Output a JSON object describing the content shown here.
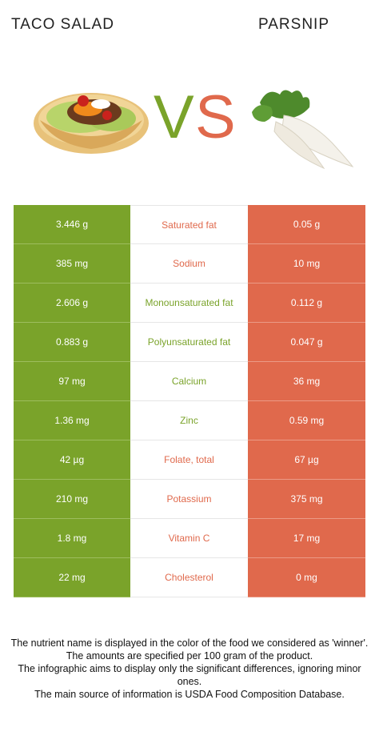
{
  "header": {
    "left": "TACO SALAD",
    "right": "PARSNIP"
  },
  "vs": {
    "v": "V",
    "s": "S"
  },
  "colors": {
    "green": "#7aa32a",
    "orange": "#e0694c"
  },
  "rows": [
    {
      "left": "3.446 g",
      "nutrient": "Saturated fat",
      "right": "0.05 g",
      "winner": "right"
    },
    {
      "left": "385 mg",
      "nutrient": "Sodium",
      "right": "10 mg",
      "winner": "right"
    },
    {
      "left": "2.606 g",
      "nutrient": "Monounsaturated fat",
      "right": "0.112 g",
      "winner": "left"
    },
    {
      "left": "0.883 g",
      "nutrient": "Polyunsaturated fat",
      "right": "0.047 g",
      "winner": "left"
    },
    {
      "left": "97 mg",
      "nutrient": "Calcium",
      "right": "36 mg",
      "winner": "left"
    },
    {
      "left": "1.36 mg",
      "nutrient": "Zinc",
      "right": "0.59 mg",
      "winner": "left"
    },
    {
      "left": "42 µg",
      "nutrient": "Folate, total",
      "right": "67 µg",
      "winner": "right"
    },
    {
      "left": "210 mg",
      "nutrient": "Potassium",
      "right": "375 mg",
      "winner": "right"
    },
    {
      "left": "1.8 mg",
      "nutrient": "Vitamin C",
      "right": "17 mg",
      "winner": "right"
    },
    {
      "left": "22 mg",
      "nutrient": "Cholesterol",
      "right": "0 mg",
      "winner": "right"
    }
  ],
  "footer": [
    "The nutrient name is displayed in the color of the food we considered as 'winner'.",
    "The amounts are specified per 100 gram of the product.",
    "The infographic aims to display only the significant differences, ignoring minor ones.",
    "The main source of information is USDA Food Composition Database."
  ]
}
